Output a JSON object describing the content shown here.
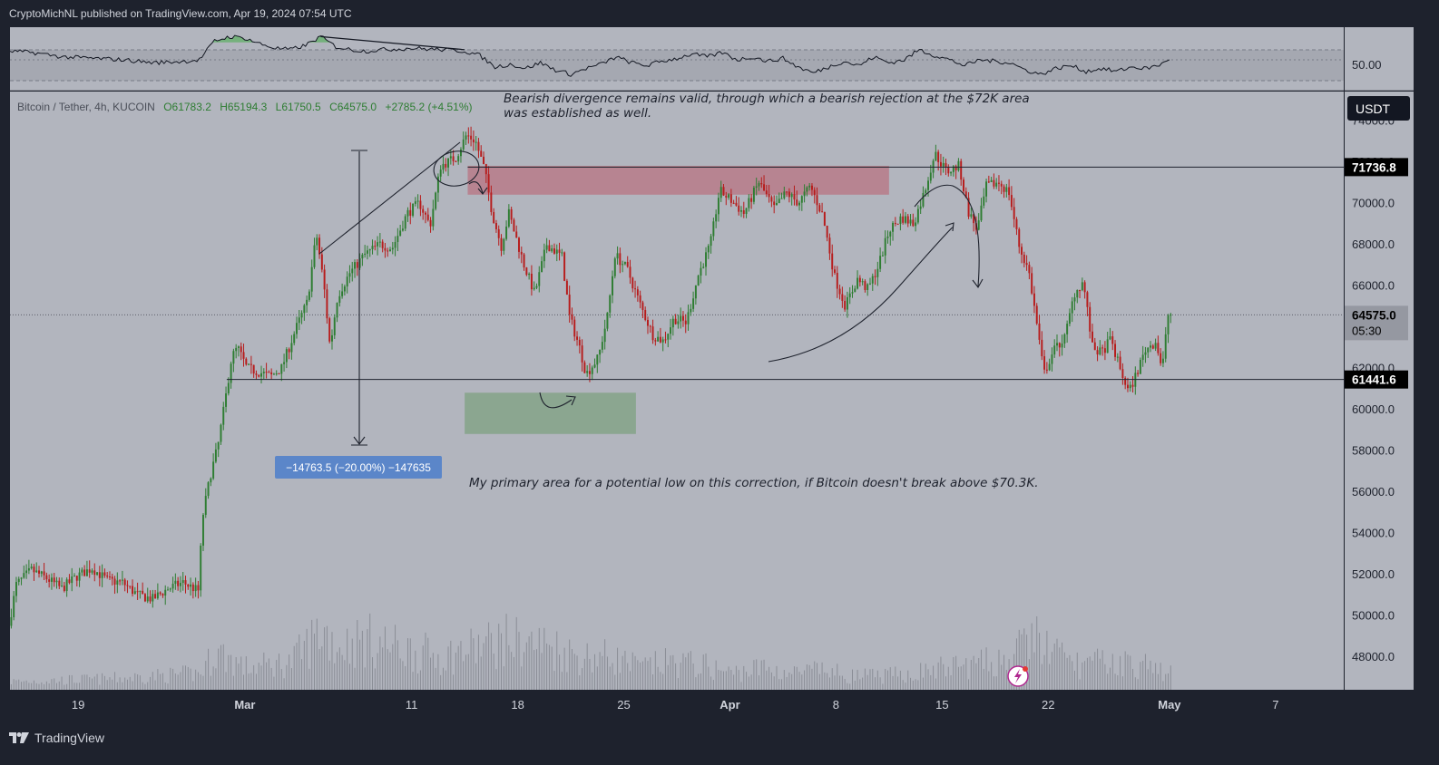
{
  "header": {
    "published": "CryptoMichNL published on TradingView.com, Apr 19, 2024 07:54 UTC"
  },
  "legend": {
    "symbol": "Bitcoin / Tether, 4h, KUCOIN",
    "open": "O61783.2",
    "high": "H65194.3",
    "low": "L61750.5",
    "close": "C64575.0",
    "change": "+2785.2 (+4.51%)"
  },
  "currency_badge": "USDT",
  "oscillator": {
    "level_label": "50.00"
  },
  "annotations": {
    "divergence_line1": "Bearish divergence remains valid, through which a bearish rejection at the $72K area",
    "divergence_line2": "was established as well.",
    "primary_area": "My primary area for a potential low on this correction, if Bitcoin doesn't break above $70.3K.",
    "measure": "−14763.5 (−20.00%) −147635"
  },
  "price_tags": {
    "resistance": "71736.8",
    "support": "61441.6",
    "last": "64575.0",
    "countdown": "05:30"
  },
  "footer": {
    "brand": "TradingView"
  },
  "colors": {
    "bull": "#2e7d32",
    "bear": "#b71c1c",
    "chart_bg": "#b2b5be",
    "frame": "#1e222d",
    "resistance_zone": "#b87886",
    "support_zone": "#84a388",
    "measure_box": "#5b86c9"
  },
  "chart_data": {
    "type": "candlestick",
    "interval": "4h",
    "y_axis": {
      "ticks": [
        48000,
        50000,
        52000,
        54000,
        56000,
        58000,
        60000,
        62000,
        64000,
        66000,
        68000,
        70000,
        72000,
        74000
      ],
      "tick_labels": [
        "48000.0",
        "50000.0",
        "52000.0",
        "54000.0",
        "56000.0",
        "58000.0",
        "60000.0",
        "62000.0",
        "64000.0",
        "66000.0",
        "68000.0",
        "70000.0",
        "72000.0",
        "74000.0"
      ],
      "range": [
        46400,
        75400
      ]
    },
    "x_axis": {
      "tick_labels": [
        "19",
        "Mar",
        "11",
        "18",
        "25",
        "Apr",
        "8",
        "15",
        "22",
        "May",
        "7"
      ],
      "tick_days": [
        0,
        11,
        22,
        29,
        36,
        43,
        50,
        57,
        64,
        72,
        79
      ],
      "day_range": [
        -4.5,
        83.5
      ]
    },
    "horizontal_lines": [
      71736.8,
      61441.6
    ],
    "last_price": 64575.0,
    "zones": [
      {
        "name": "resistance-zone",
        "day_range": [
          25.7,
          53.5
        ],
        "price_range": [
          70400,
          71800
        ]
      },
      {
        "name": "support-zone",
        "day_range": [
          25.5,
          36.8
        ],
        "price_range": [
          58800,
          60800
        ]
      }
    ],
    "price_path": [
      [
        -4.5,
        49500
      ],
      [
        -4,
        51500
      ],
      [
        -3,
        52200
      ],
      [
        -2,
        51800
      ],
      [
        -1,
        51300
      ],
      [
        0,
        51900
      ],
      [
        1,
        52300
      ],
      [
        2,
        51700
      ],
      [
        3,
        51600
      ],
      [
        4,
        51000
      ],
      [
        5,
        50800
      ],
      [
        6,
        51300
      ],
      [
        7,
        51600
      ],
      [
        8,
        51200
      ],
      [
        8.3,
        54800
      ],
      [
        8.8,
        56800
      ],
      [
        9.3,
        58200
      ],
      [
        9.8,
        60500
      ],
      [
        10.2,
        62500
      ],
      [
        10.6,
        63000
      ],
      [
        11.2,
        62000
      ],
      [
        12,
        61800
      ],
      [
        12.8,
        61600
      ],
      [
        13.5,
        62000
      ],
      [
        14.5,
        64000
      ],
      [
        15.2,
        65200
      ],
      [
        15.8,
        68500
      ],
      [
        16.3,
        66000
      ],
      [
        16.7,
        63000
      ],
      [
        17.2,
        65500
      ],
      [
        18,
        66600
      ],
      [
        19,
        67500
      ],
      [
        20,
        68000
      ],
      [
        20.8,
        67800
      ],
      [
        21.8,
        69500
      ],
      [
        22.6,
        70000
      ],
      [
        23.3,
        68900
      ],
      [
        24,
        71800
      ],
      [
        25,
        72200
      ],
      [
        25.7,
        73300
      ],
      [
        26.3,
        73000
      ],
      [
        26.9,
        71600
      ],
      [
        27.4,
        69500
      ],
      [
        28,
        67900
      ],
      [
        28.5,
        69500
      ],
      [
        29.5,
        67000
      ],
      [
        30.2,
        65600
      ],
      [
        31,
        68000
      ],
      [
        32,
        67400
      ],
      [
        32.5,
        64500
      ],
      [
        33.2,
        62900
      ],
      [
        33.6,
        61700
      ],
      [
        34.4,
        62500
      ],
      [
        35,
        64500
      ],
      [
        35.5,
        67500
      ],
      [
        36.3,
        66800
      ],
      [
        37.2,
        65000
      ],
      [
        38,
        63600
      ],
      [
        38.7,
        63300
      ],
      [
        39.4,
        64400
      ],
      [
        40.2,
        64200
      ],
      [
        41,
        66500
      ],
      [
        41.8,
        68000
      ],
      [
        42.4,
        70600
      ],
      [
        43.2,
        70100
      ],
      [
        44,
        69500
      ],
      [
        45,
        71000
      ],
      [
        46,
        69700
      ],
      [
        46.8,
        70500
      ],
      [
        47.6,
        70000
      ],
      [
        48.4,
        70800
      ],
      [
        49.2,
        69400
      ],
      [
        50,
        66400
      ],
      [
        50.7,
        65000
      ],
      [
        51.5,
        66300
      ],
      [
        52.2,
        65800
      ],
      [
        52.9,
        67000
      ],
      [
        53.6,
        68700
      ],
      [
        54.4,
        69300
      ],
      [
        55.2,
        69000
      ],
      [
        55.9,
        70500
      ],
      [
        56.6,
        72400
      ],
      [
        57.4,
        71500
      ],
      [
        58.2,
        71800
      ],
      [
        58.8,
        69600
      ],
      [
        59.4,
        68700
      ],
      [
        60,
        70800
      ],
      [
        60.8,
        71000
      ],
      [
        61.5,
        70500
      ],
      [
        62.2,
        67800
      ],
      [
        62.8,
        66700
      ],
      [
        63.3,
        64300
      ],
      [
        63.8,
        61700
      ],
      [
        64.4,
        62800
      ],
      [
        65.2,
        63500
      ],
      [
        65.8,
        65600
      ],
      [
        66.4,
        66200
      ],
      [
        67,
        63000
      ],
      [
        67.6,
        62700
      ],
      [
        68.2,
        63400
      ],
      [
        68.8,
        62000
      ],
      [
        69.4,
        60800
      ],
      [
        70,
        61900
      ],
      [
        70.5,
        62900
      ],
      [
        71.2,
        63300
      ],
      [
        71.6,
        61900
      ],
      [
        72,
        64575
      ]
    ],
    "volume_path": [
      [
        -4,
        3
      ],
      [
        2,
        4
      ],
      [
        8,
        6
      ],
      [
        9,
        14
      ],
      [
        11,
        8
      ],
      [
        14,
        10
      ],
      [
        16,
        22
      ],
      [
        17,
        16
      ],
      [
        19,
        18
      ],
      [
        22,
        14
      ],
      [
        24,
        12
      ],
      [
        26,
        15
      ],
      [
        28,
        18
      ],
      [
        31,
        16
      ],
      [
        33,
        12
      ],
      [
        35,
        12
      ],
      [
        37,
        8
      ],
      [
        39,
        10
      ],
      [
        41,
        9
      ],
      [
        43,
        6
      ],
      [
        45,
        8
      ],
      [
        47,
        6
      ],
      [
        49,
        7
      ],
      [
        51,
        5
      ],
      [
        53,
        5
      ],
      [
        55,
        6
      ],
      [
        57,
        8
      ],
      [
        59,
        9
      ],
      [
        61,
        11
      ],
      [
        62,
        14
      ],
      [
        63,
        20
      ],
      [
        64,
        14
      ],
      [
        66,
        9
      ],
      [
        68,
        10
      ],
      [
        70,
        9
      ],
      [
        72,
        6
      ]
    ],
    "oscillator_path": [
      [
        -4.5,
        56
      ],
      [
        -3,
        55
      ],
      [
        -1,
        52
      ],
      [
        1,
        51
      ],
      [
        3,
        50
      ],
      [
        5,
        48
      ],
      [
        7,
        49
      ],
      [
        8,
        50
      ],
      [
        9,
        63
      ],
      [
        10,
        66
      ],
      [
        11,
        65
      ],
      [
        12,
        61
      ],
      [
        13,
        58
      ],
      [
        14,
        57
      ],
      [
        15,
        60
      ],
      [
        16,
        66
      ],
      [
        17,
        59
      ],
      [
        18,
        57
      ],
      [
        19,
        56
      ],
      [
        20,
        57
      ],
      [
        22,
        58
      ],
      [
        24,
        57
      ],
      [
        25.5,
        56
      ],
      [
        26.5,
        53
      ],
      [
        27.5,
        45
      ],
      [
        28.5,
        47
      ],
      [
        29.5,
        44
      ],
      [
        30.5,
        48
      ],
      [
        31.5,
        43
      ],
      [
        32.5,
        40
      ],
      [
        33.5,
        44
      ],
      [
        34.5,
        47
      ],
      [
        35.5,
        52
      ],
      [
        36.5,
        48
      ],
      [
        37.5,
        46
      ],
      [
        38.5,
        49
      ],
      [
        39.5,
        51
      ],
      [
        40.5,
        54
      ],
      [
        41.5,
        52
      ],
      [
        42.5,
        55
      ],
      [
        43.5,
        50
      ],
      [
        44.5,
        52
      ],
      [
        45.5,
        49
      ],
      [
        46.5,
        51
      ],
      [
        47.5,
        45
      ],
      [
        48.5,
        41
      ],
      [
        49.5,
        45
      ],
      [
        50.5,
        49
      ],
      [
        51.5,
        46
      ],
      [
        52.5,
        52
      ],
      [
        53.5,
        48
      ],
      [
        54.5,
        50
      ],
      [
        55.5,
        57
      ],
      [
        56.5,
        53
      ],
      [
        57.5,
        50
      ],
      [
        58.5,
        46
      ],
      [
        59.5,
        50
      ],
      [
        60.5,
        49
      ],
      [
        61.5,
        48
      ],
      [
        62.5,
        43
      ],
      [
        63.5,
        40
      ],
      [
        64.5,
        44
      ],
      [
        65.5,
        46
      ],
      [
        66.5,
        42
      ],
      [
        67.5,
        44
      ],
      [
        68.5,
        42
      ],
      [
        69.5,
        45
      ],
      [
        70.5,
        44
      ],
      [
        71.5,
        47
      ],
      [
        72,
        51
      ]
    ]
  }
}
